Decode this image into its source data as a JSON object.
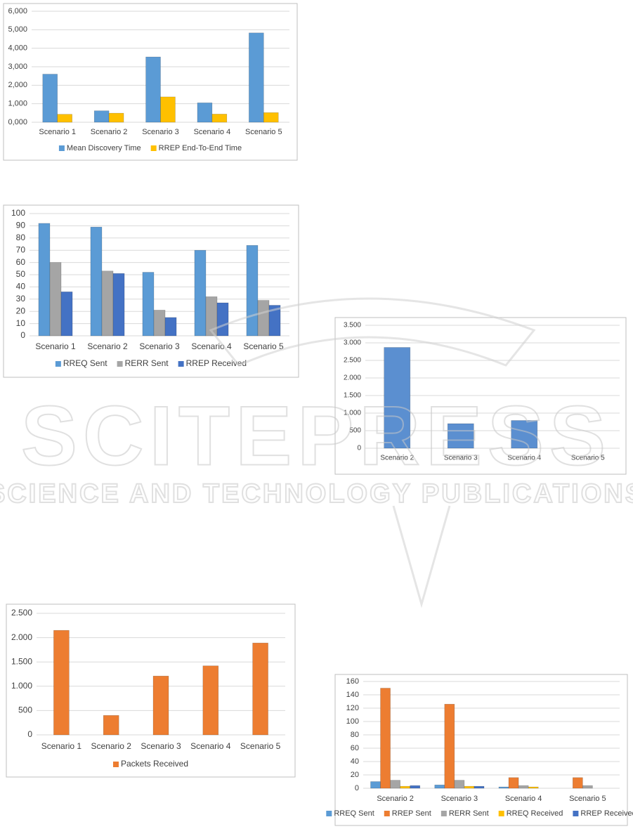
{
  "chart_data": [
    {
      "type": "bar",
      "categories": [
        "Scenario 1",
        "Scenario 2",
        "Scenario 3",
        "Scenario 4",
        "Scenario 5"
      ],
      "series": [
        {
          "name": "Mean Discovery Time",
          "color": "#5b9bd5",
          "values": [
            2600,
            620,
            3530,
            1050,
            4830
          ]
        },
        {
          "name": "RREP End-To-End Time",
          "color": "#ffc000",
          "values": [
            430,
            490,
            1370,
            440,
            520
          ]
        }
      ],
      "ylim": [
        0,
        6000
      ],
      "yticks": [
        {
          "value": 0,
          "label": "0,000"
        },
        {
          "value": 1000,
          "label": "1,000"
        },
        {
          "value": 2000,
          "label": "2,000"
        },
        {
          "value": 3000,
          "label": "3,000"
        },
        {
          "value": 4000,
          "label": "4,000"
        },
        {
          "value": 5000,
          "label": "5,000"
        },
        {
          "value": 6000,
          "label": "6,000"
        }
      ],
      "grid": true
    },
    {
      "type": "bar",
      "categories": [
        "Scenario 1",
        "Scenario 2",
        "Scenario 3",
        "Scenario 4",
        "Scenario 5"
      ],
      "series": [
        {
          "name": "RREQ Sent",
          "color": "#5b9bd5",
          "values": [
            92,
            89,
            52,
            70,
            74
          ]
        },
        {
          "name": "RERR Sent",
          "color": "#a5a5a5",
          "values": [
            60,
            53,
            21,
            32,
            29
          ]
        },
        {
          "name": "RREP Received",
          "color": "#4472c4",
          "values": [
            36,
            51,
            15,
            27,
            25
          ]
        }
      ],
      "ylim": [
        0,
        100
      ],
      "yticks": [
        0,
        10,
        20,
        30,
        40,
        50,
        60,
        70,
        80,
        90,
        100
      ],
      "grid": true
    },
    {
      "type": "bar",
      "categories": [
        "Scenario 2",
        "Scenario 3",
        "Scenario 4",
        "Scenario 5"
      ],
      "series": [
        {
          "color": "#5b8fd0",
          "values": [
            2870,
            700,
            790,
            0
          ]
        }
      ],
      "ylim": [
        0,
        3500
      ],
      "yticks": [
        0,
        500,
        {
          "value": 1000,
          "label": "1.000"
        },
        {
          "value": 1500,
          "label": "1.500"
        },
        {
          "value": 2000,
          "label": "2.000"
        },
        {
          "value": 2500,
          "label": "2.500"
        },
        {
          "value": 3000,
          "label": "3.000"
        },
        {
          "value": 3500,
          "label": "3.500"
        }
      ],
      "grid": true
    },
    {
      "type": "bar",
      "categories": [
        "Scenario 1",
        "Scenario 2",
        "Scenario 3",
        "Scenario 4",
        "Scenario 5"
      ],
      "series": [
        {
          "name": "Packets Received",
          "color": "#ed7d31",
          "values": [
            2150,
            400,
            1210,
            1420,
            1890
          ]
        }
      ],
      "ylim": [
        0,
        2500
      ],
      "yticks": [
        0,
        500,
        {
          "value": 1000,
          "label": "1.000"
        },
        {
          "value": 1500,
          "label": "1.500"
        },
        {
          "value": 2000,
          "label": "2.000"
        },
        {
          "value": 2500,
          "label": "2.500"
        }
      ],
      "grid": true
    },
    {
      "type": "bar",
      "categories": [
        "Scenario 2",
        "Scenario 3",
        "Scenario 4",
        "Scenario 5"
      ],
      "series": [
        {
          "name": "RREQ Sent",
          "color": "#5b9bd5",
          "values": [
            10,
            5,
            2,
            0
          ]
        },
        {
          "name": "RREP Sent",
          "color": "#ed7d31",
          "values": [
            150,
            126,
            16,
            16
          ]
        },
        {
          "name": "RERR Sent",
          "color": "#a5a5a5",
          "values": [
            12,
            12,
            4,
            4
          ]
        },
        {
          "name": "RREQ Received",
          "color": "#ffc000",
          "values": [
            3,
            3,
            2,
            0
          ]
        },
        {
          "name": "RREP Received",
          "color": "#4472c4",
          "values": [
            4,
            3,
            0,
            0
          ]
        }
      ],
      "ylim": [
        0,
        160
      ],
      "yticks": [
        0,
        20,
        40,
        60,
        80,
        100,
        120,
        140,
        160
      ],
      "grid": true
    }
  ],
  "watermark": {
    "title": "SCITEPRESS",
    "subtitle": "SCIENCE AND TECHNOLOGY PUBLICATIONS"
  }
}
